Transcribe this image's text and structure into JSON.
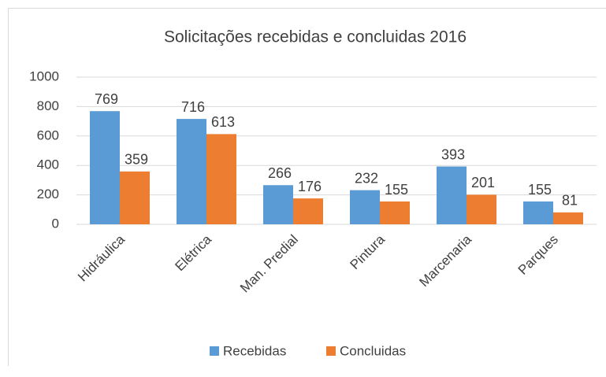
{
  "chart_data": {
    "type": "bar",
    "title": "Solicitações recebidas e concluidas 2016",
    "categories": [
      "Hidráulica",
      "Elétrica",
      "Man. Predial",
      "Pintura",
      "Marcenaria",
      "Parques"
    ],
    "series": [
      {
        "name": "Recebidas",
        "color": "#5b9bd5",
        "values": [
          769,
          716,
          266,
          232,
          393,
          155
        ]
      },
      {
        "name": "Concluidas",
        "color": "#ed7d31",
        "values": [
          359,
          613,
          176,
          155,
          201,
          81
        ]
      }
    ],
    "ylim": [
      0,
      1000
    ],
    "yticks": [
      0,
      200,
      400,
      600,
      800,
      1000
    ],
    "grid": true,
    "legend": "bottom"
  }
}
